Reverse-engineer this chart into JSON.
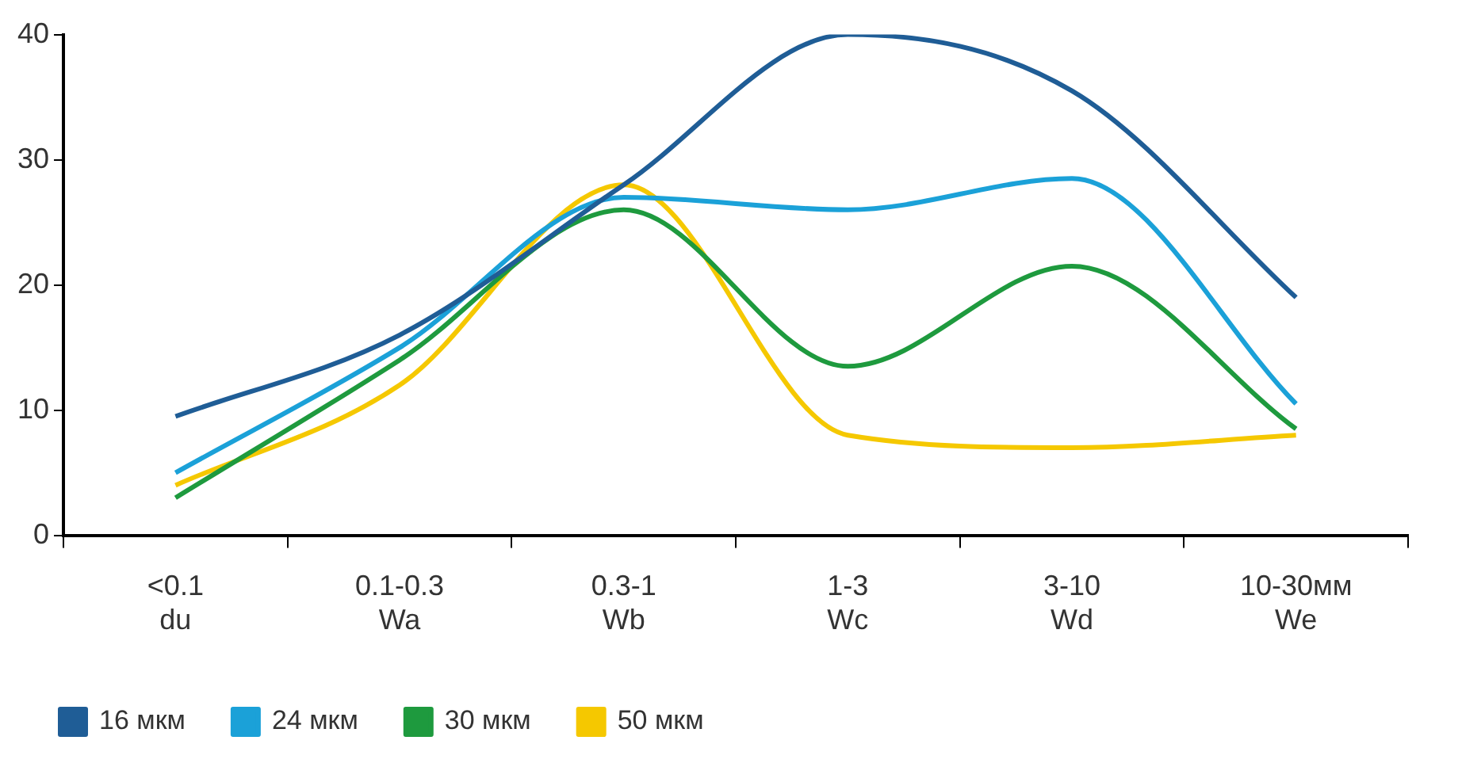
{
  "chart_data": {
    "type": "line",
    "categories": [
      "<0.1\ndu",
      "0.1-0.3\nWa",
      "0.3-1\nWb",
      "1-3\nWc",
      "3-10\nWd",
      "10-30мм\nWe"
    ],
    "series": [
      {
        "name": "16 мкм",
        "color": "#1f5d96",
        "values": [
          9.5,
          16,
          28,
          40,
          35.5,
          19
        ]
      },
      {
        "name": "24 мкм",
        "color": "#1ba1d8",
        "values": [
          5,
          15,
          27,
          26,
          28.5,
          10.5
        ]
      },
      {
        "name": "30 мкм",
        "color": "#1e9a3e",
        "values": [
          3,
          14,
          26,
          13.5,
          21.5,
          8.5
        ]
      },
      {
        "name": "50 мкм",
        "color": "#f5c800",
        "values": [
          4,
          12,
          28,
          8,
          7,
          8
        ]
      }
    ],
    "ylim": [
      0,
      40
    ],
    "yticks": [
      0,
      10,
      20,
      30,
      40
    ],
    "grid": false,
    "legend": "bottom left",
    "marker": "none",
    "line_style": "solid"
  }
}
